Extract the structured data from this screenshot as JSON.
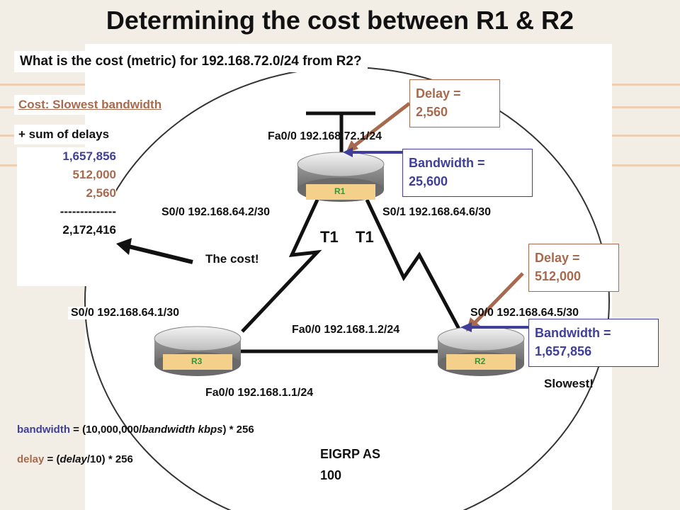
{
  "title": "Determining the cost between R1 & R2",
  "question": "What is the cost (metric) for 192.168.72.0/24 from R2?",
  "cost_heading": "Cost: Slowest bandwidth",
  "cost_sub": "+ sum of delays",
  "calc_values": [
    "1,657,856",
    "512,000",
    "2,560"
  ],
  "calc_divider": "--------------",
  "calc_total": "2,172,416",
  "cost_label": "The cost!",
  "routers": {
    "r1": "R1",
    "r2": "R2",
    "r3": "R3"
  },
  "links": {
    "t1a": "T1",
    "t1b": "T1"
  },
  "interfaces": {
    "r1_fa": "Fa0/0 192.168.72.1/24",
    "r1_s0": "S0/0 192.168.64.2/30",
    "r1_s1": "S0/1 192.168.64.6/30",
    "r3_s0": "S0/0 192.168.64.1/30",
    "r2_s0": "S0/0 192.168.64.5/30",
    "r2_fa": "Fa0/0 192.168.1.2/24",
    "r3_fa": "Fa0/0 192.168.1.1/24"
  },
  "delay1": {
    "label": "Delay =",
    "value": "2,560"
  },
  "bw1": {
    "label": "Bandwidth =",
    "value": "25,600"
  },
  "delay2": {
    "label": "Delay =",
    "value": "512,000"
  },
  "bw2": {
    "label": "Bandwidth =",
    "value": "1,657,856"
  },
  "slowest": "Slowest!",
  "formula_bw": {
    "key": "bandwidth",
    "rest": " = (10,000,000/",
    "ital": "bandwidth kbps",
    "end": ") * 256"
  },
  "formula_delay": {
    "key": "delay",
    "rest": " = (",
    "ital": "delay",
    "end": "/10) * 256"
  },
  "eigrp": [
    "EIGRP AS",
    "100"
  ],
  "colors": {
    "delay": "#a86a4e",
    "bandwidth": "#3f3f9a",
    "calc": "#3f3f9a",
    "router_label": "#2a9a3a",
    "router_tag": "#f5d08a"
  }
}
